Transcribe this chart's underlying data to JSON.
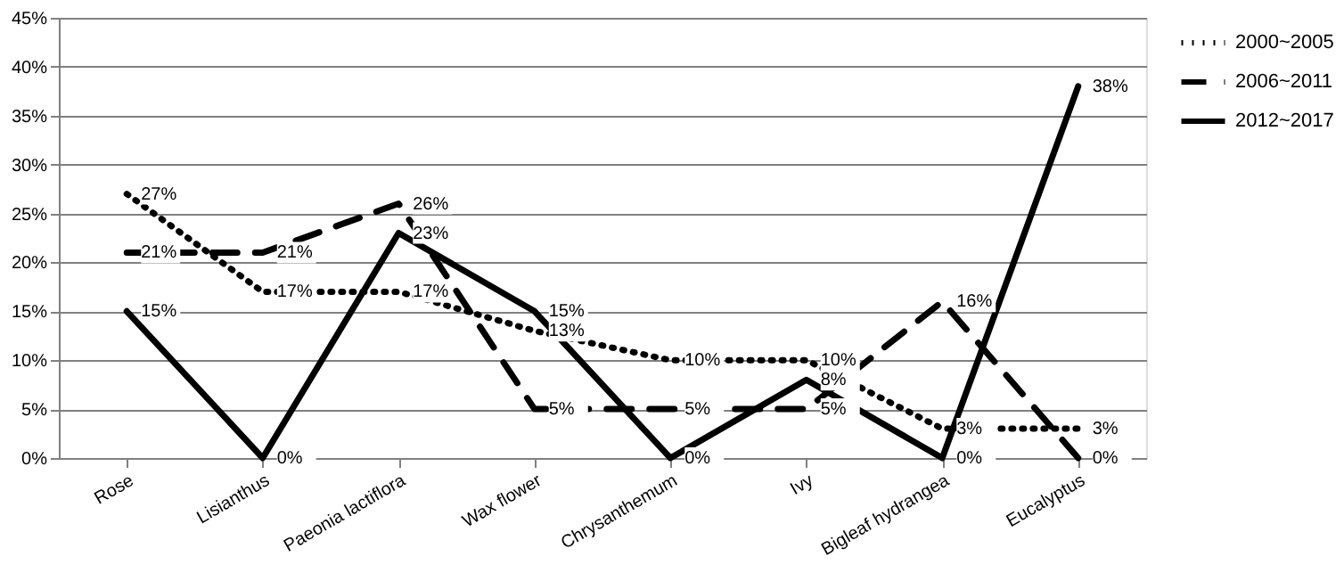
{
  "chart_data": {
    "type": "line",
    "categories": [
      "Rose",
      "Lisianthus",
      "Paeonia lactiflora",
      "Wax flower",
      "Chrysanthemum",
      "Ivy",
      "Bigleaf hydrangea",
      "Eucalyptus"
    ],
    "series": [
      {
        "name": "2000~2005",
        "color": "#000000",
        "line_style": "dotted",
        "values": [
          27,
          17,
          17,
          13,
          10,
          10,
          3,
          3
        ],
        "value_labels": [
          "27%",
          "17%",
          "17%",
          "13%",
          "10%",
          "10%",
          "3%",
          "3%"
        ]
      },
      {
        "name": "2006~2011",
        "color": "#000000",
        "line_style": "dashed",
        "values": [
          21,
          21,
          26,
          5,
          5,
          5,
          16,
          0
        ],
        "value_labels": [
          "21%",
          "21%",
          "26%",
          "5%",
          "5%",
          "5%",
          "16%",
          "0%"
        ]
      },
      {
        "name": "2012~2017",
        "color": "#000000",
        "line_style": "solid",
        "values": [
          15,
          0,
          23,
          15,
          0,
          8,
          0,
          38
        ],
        "value_labels": [
          "15%",
          "0%",
          "23%",
          "15%",
          "0%",
          "8%",
          "0%",
          "38%"
        ]
      }
    ],
    "ylim": [
      0,
      45
    ],
    "yticks": [
      {
        "value": 0,
        "label": "0%"
      },
      {
        "value": 5,
        "label": "5%"
      },
      {
        "value": 10,
        "label": "10%"
      },
      {
        "value": 15,
        "label": "15%"
      },
      {
        "value": 20,
        "label": "20%"
      },
      {
        "value": 25,
        "label": "25%"
      },
      {
        "value": 30,
        "label": "30%"
      },
      {
        "value": 35,
        "label": "35%"
      },
      {
        "value": 40,
        "label": "40%"
      },
      {
        "value": 45,
        "label": "45%"
      }
    ],
    "grid": "y",
    "legend": "right",
    "marker": "none"
  }
}
